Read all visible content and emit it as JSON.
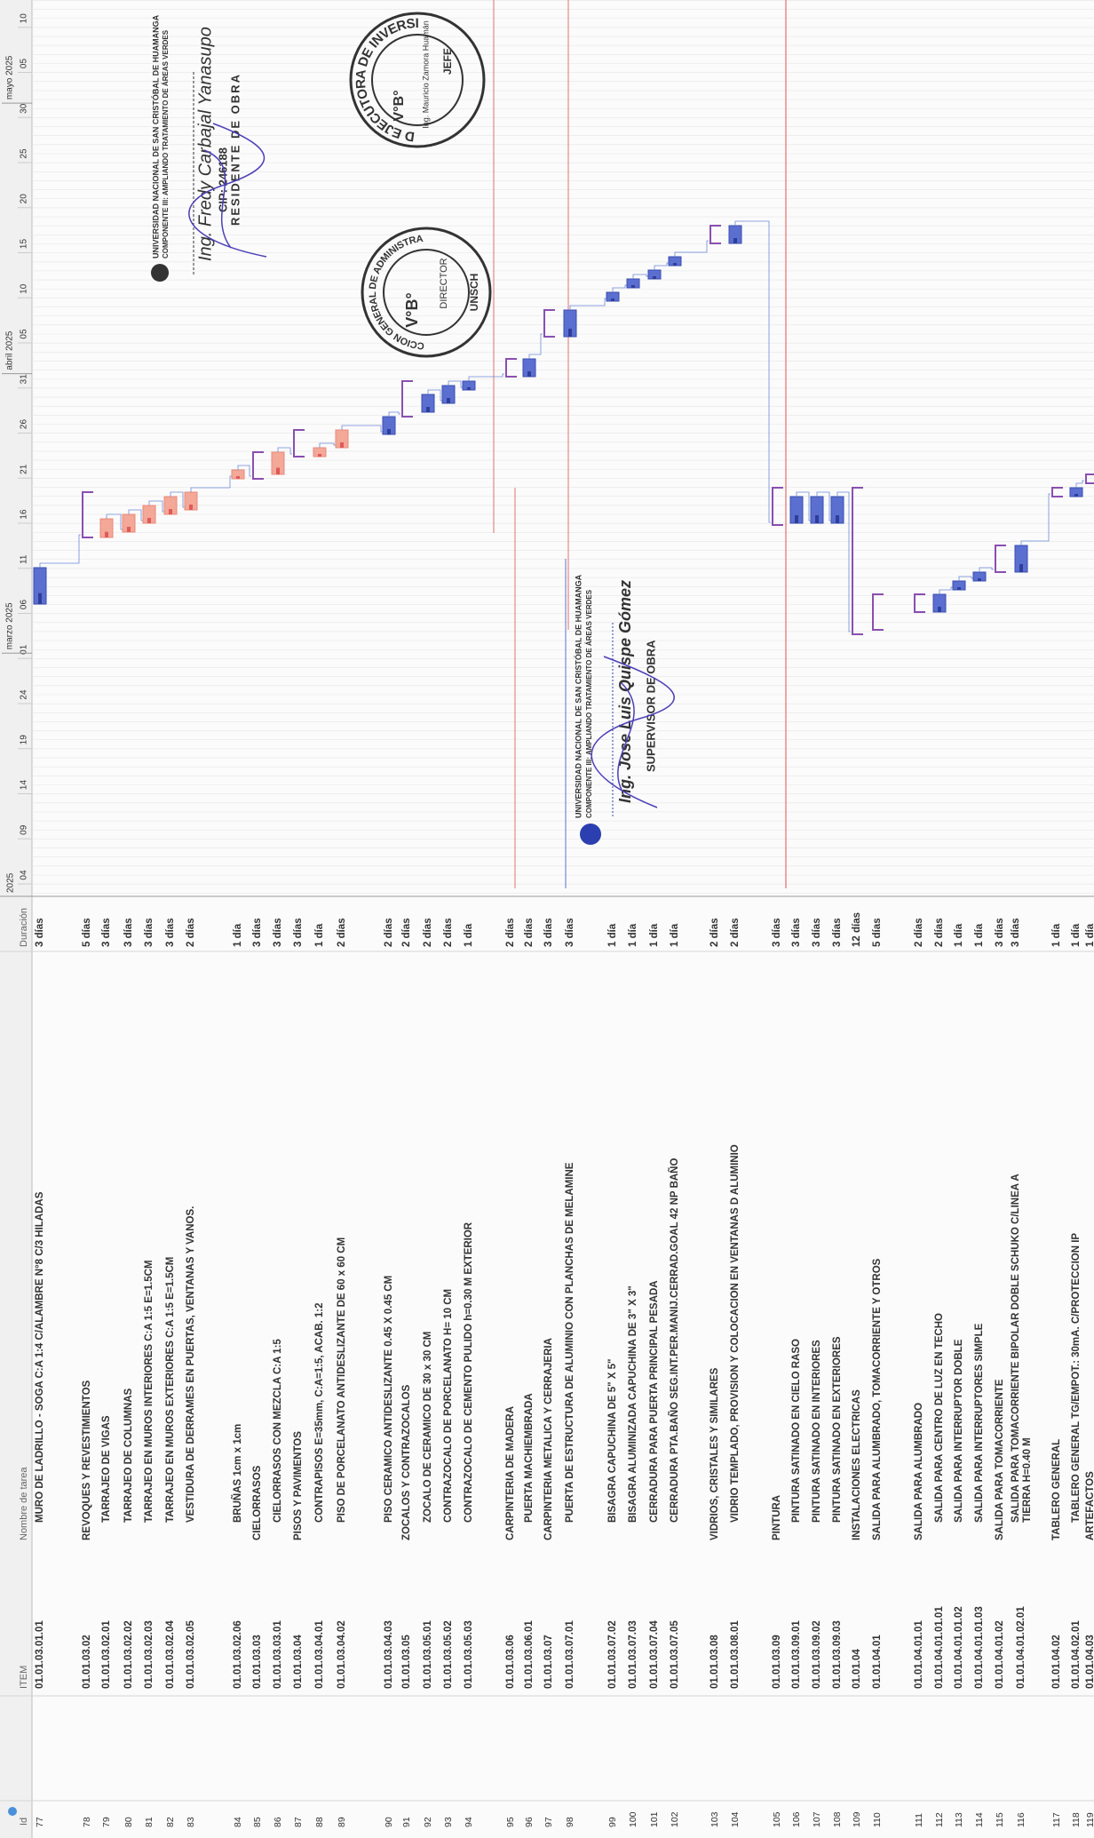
{
  "header": {
    "columns": [
      "Id",
      "ITEM",
      "Nombre de tarea",
      "Duración"
    ]
  },
  "timeline": {
    "start_label": "2025",
    "months": [
      "marzo 2025",
      "abril 2025",
      "mayo 2025"
    ],
    "days": [
      "04",
      "09",
      "14",
      "19",
      "24",
      "01",
      "06",
      "11",
      "16",
      "21",
      "26",
      "31",
      "05",
      "10",
      "15",
      "20",
      "25",
      "30",
      "05",
      "10"
    ]
  },
  "rows": [
    {
      "id": 77,
      "item": "01.01.03.01.01",
      "name": "MURO DE LADRILLO - SOGA C:A 1:4 C/ALAMBRE N°8 C/3 HILADAS",
      "duration": "3 días"
    },
    {
      "id": 78,
      "item": "01.01.03.02",
      "name": "REVOQUES Y REVESTIMIENTOS",
      "duration": "5 días",
      "color": "#d966b2"
    },
    {
      "id": 79,
      "item": "01.01.03.02.01",
      "name": "TARRAJEO DE VIGAS",
      "duration": "3 días"
    },
    {
      "id": 80,
      "item": "01.01.03.02.02",
      "name": "TARRAJEO DE COLUMNAS",
      "duration": "3 días"
    },
    {
      "id": 81,
      "item": "01.01.03.02.03",
      "name": "TARRAJEO EN MUROS INTERIORES C:A 1:5 E=1.5CM",
      "duration": "3 días"
    },
    {
      "id": 82,
      "item": "01.01.03.02.04",
      "name": "TARRAJEO EN MUROS EXTERIORES C:A 1:5 E=1.5CM",
      "duration": "3 días"
    },
    {
      "id": 83,
      "item": "01.01.03.02.05",
      "name": "VESTIDURA DE DERRAMES EN PUERTAS, VENTANAS Y VANOS.",
      "duration": "2 días"
    },
    {
      "id": 84,
      "item": "01.01.03.02.06",
      "name": "BRUÑAS 1cm x 1cm",
      "duration": "1 día"
    },
    {
      "id": 85,
      "item": "01.01.03.03",
      "name": "CIELORRASOS",
      "duration": "3 días",
      "color": "#d966b2"
    },
    {
      "id": 86,
      "item": "01.01.03.03.01",
      "name": "CIELORRASOS CON MEZCLA C:A 1:5",
      "duration": "3 días"
    },
    {
      "id": 87,
      "item": "01.01.03.04",
      "name": "PISOS Y PAVIMENTOS",
      "duration": "3 días",
      "color": "#d966b2"
    },
    {
      "id": 88,
      "item": "01.01.03.04.01",
      "name": "CONTRAPISOS E=35mm, C:A=1:5, ACAB. 1:2",
      "duration": "1 día"
    },
    {
      "id": 89,
      "item": "01.01.03.04.02",
      "name": "PISO DE PORCELANATO ANTIDESLIZANTE DE 60 x 60 CM",
      "duration": "2 días"
    },
    {
      "id": 90,
      "item": "01.01.03.04.03",
      "name": "PISO CERAMICO ANTIDESLIZANTE 0.45 X 0.45 CM",
      "duration": "2 días"
    },
    {
      "id": 91,
      "item": "01.01.03.05",
      "name": "ZOCALOS Y CONTRAZOCALOS",
      "duration": "2 días",
      "color": "#d966b2"
    },
    {
      "id": 92,
      "item": "01.01.03.05.01",
      "name": "ZOCALO DE CERAMICO DE 30 x 30 CM",
      "duration": "2 días"
    },
    {
      "id": 93,
      "item": "01.01.03.05.02",
      "name": "CONTRAZOCALO DE PORCELANATO H= 10 CM",
      "duration": "2 días"
    },
    {
      "id": 94,
      "item": "01.01.03.05.03",
      "name": "CONTRAZOCALO DE CEMENTO PULIDO h=0.30 M EXTERIOR",
      "duration": "1 día"
    },
    {
      "id": 95,
      "item": "01.01.03.06",
      "name": "CARPINTERIA DE MADERA",
      "duration": "2 días",
      "color": "#d966b2"
    },
    {
      "id": 96,
      "item": "01.01.03.06.01",
      "name": "PUERTA MACHIEMBRADA",
      "duration": "2 días"
    },
    {
      "id": 97,
      "item": "01.01.03.07",
      "name": "CARPINTERIA METALICA Y CERRAJERIA",
      "duration": "3 días",
      "color": "#d966b2"
    },
    {
      "id": 98,
      "item": "01.01.03.07.01",
      "name": "PUERTA DE ESTRUCTURA DE ALUMINIO CON PLANCHAS DE MELAMINE",
      "duration": "3 días"
    },
    {
      "id": 99,
      "item": "01.01.03.07.02",
      "name": "BISAGRA CAPUCHINA DE 5\" X 5\"",
      "duration": "1 día"
    },
    {
      "id": 100,
      "item": "01.01.03.07.03",
      "name": "BISAGRA ALUMINIZADA CAPUCHINA DE 3\" X 3\"",
      "duration": "1 día"
    },
    {
      "id": 101,
      "item": "01.01.03.07.04",
      "name": "CERRADURA PARA PUERTA PRINCIPAL PESADA",
      "duration": "1 día"
    },
    {
      "id": 102,
      "item": "01.01.03.07.05",
      "name": "CERRADURA PTA.BAÑO SEG.INT.PER.MANIJ.CERRAD.GOAL 42 NP BAÑO",
      "duration": "1 día"
    },
    {
      "id": 103,
      "item": "01.01.03.08",
      "name": "VIDRIOS, CRISTALES Y SIMILARES",
      "duration": "2 días",
      "color": "#d966b2"
    },
    {
      "id": 104,
      "item": "01.01.03.08.01",
      "name": "VIDRIO TEMPLADO, PROVISION Y COLOCACION EN VENTANAS D ALUMINIO",
      "duration": "2 días"
    },
    {
      "id": 105,
      "item": "01.01.03.09",
      "name": "PINTURA",
      "duration": "3 días",
      "color": "#d966b2"
    },
    {
      "id": 106,
      "item": "01.01.03.09.01",
      "name": "PINTURA SATINADO EN CIELO RASO",
      "duration": "3 días"
    },
    {
      "id": 107,
      "item": "01.01.03.09.02",
      "name": "PINTURA SATINADO EN INTERIORES",
      "duration": "3 días"
    },
    {
      "id": 108,
      "item": "01.01.03.09.03",
      "name": "PINTURA SATINADO EN EXTERIORES",
      "duration": "3 días"
    },
    {
      "id": 109,
      "item": "01.01.04",
      "name": "INSTALACIONES ELECTRICAS",
      "duration": "12 días",
      "color": "#5aa7d6"
    },
    {
      "id": 110,
      "item": "01.01.04.01",
      "name": "SALIDA PARA ALUMBRADO, TOMACORRIENTE Y OTROS",
      "duration": "5 días",
      "color": "#d966b2"
    },
    {
      "id": 111,
      "item": "01.01.04.01.01",
      "name": "SALIDA PARA ALUMBRADO",
      "duration": "2 días",
      "color": "#e8862c"
    },
    {
      "id": 112,
      "item": "01.01.04.01.01.01",
      "name": "SALIDA PARA CENTRO DE LUZ EN TECHO",
      "duration": "2 días"
    },
    {
      "id": 113,
      "item": "01.01.04.01.01.02",
      "name": "SALIDA PARA INTERRUPTOR DOBLE",
      "duration": "1 día"
    },
    {
      "id": 114,
      "item": "01.01.04.01.01.03",
      "name": "SALIDA PARA INTERRUPTORES SIMPLE",
      "duration": "1 día"
    },
    {
      "id": 115,
      "item": "01.01.04.01.02",
      "name": "SALIDA PARA TOMACORRIENTE",
      "duration": "3 días",
      "color": "#e8862c"
    },
    {
      "id": 116,
      "item": "01.01.04.01.02.01",
      "name": "SALIDA PARA TOMACORRIENTE BIPOLAR DOBLE SCHUKO C/LINEA A TIERRA H=0.40 M",
      "duration": "3 días"
    },
    {
      "id": 117,
      "item": "01.01.04.02",
      "name": "TABLERO GENERAL",
      "duration": "1 día",
      "color": "#d966b2"
    },
    {
      "id": 118,
      "item": "01.01.04.02.01",
      "name": "TABLERO GENERAL TG/EMPOT.: 30mA. C/PROTECCION IP",
      "duration": "1 día"
    },
    {
      "id": 119,
      "item": "01.01.04.03",
      "name": "ARTEFACTOS",
      "duration": "1 día",
      "color": "#d966b2"
    }
  ],
  "stamps": {
    "uei": {
      "ring": "UNIDAD EJECUTORA DE INVERSIONES",
      "vb": "V°B°",
      "name": "Ing. Mauricio Zamora Huamán",
      "role": "JEFE"
    },
    "dga": {
      "ring": "DIRECCION GENERAL DE ADMINISTRACION",
      "org": "UNSCH",
      "vb": "V°B°",
      "role": "DIRECTOR"
    },
    "residente": {
      "org": "UNIVERSIDAD NACIONAL DE SAN CRISTÓBAL DE HUAMANGA",
      "component": "COMPONENTE III: AMPLIANDO TRATAMIENTO DE ÁREAS VERDES",
      "name": "Ing. Fredy Carbajal Yanasupo",
      "cip": "CIP: 246188",
      "role": "RESIDENTE DE OBRA"
    },
    "supervisor": {
      "org": "UNIVERSIDAD NACIONAL DE SAN CRISTÓBAL DE HUAMANGA",
      "component": "COMPONENTE III: AMPLIANDO TRATAMIENTO DE ÁREAS VERDES",
      "name": "Ing. Jose Luis Quispe Gómez",
      "role": "SUPERVISOR DE OBRA"
    }
  }
}
